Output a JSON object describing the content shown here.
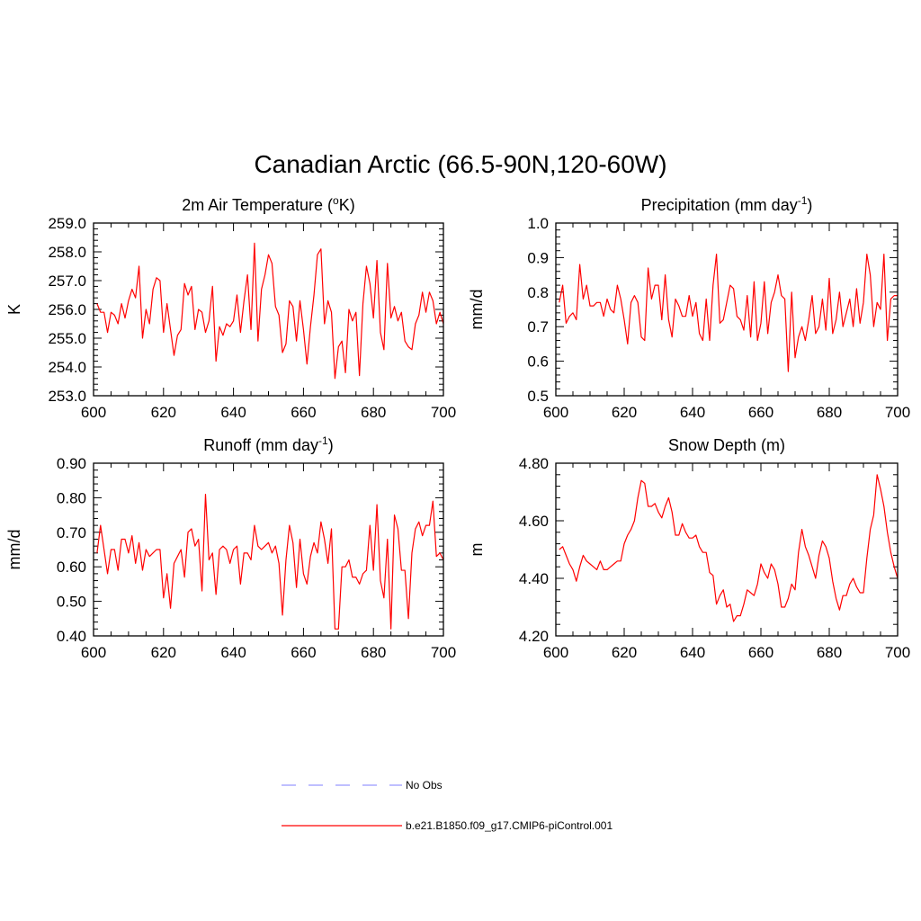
{
  "title": "Canadian Arctic (66.5-90N,120-60W)",
  "chart_data": [
    {
      "type": "line",
      "title": "2m Air Temperature (°K)",
      "xlabel": "",
      "ylabel": "K",
      "xlim": [
        600,
        700
      ],
      "ylim": [
        253.0,
        259.0
      ],
      "xticks": [
        600,
        620,
        640,
        660,
        680,
        700
      ],
      "yticks": [
        253.0,
        254.0,
        255.0,
        256.0,
        257.0,
        258.0,
        259.0
      ],
      "ytick_labels": [
        "253.0",
        "254.0",
        "255.0",
        "256.0",
        "257.0",
        "258.0",
        "259.0"
      ],
      "series": [
        {
          "name": "b.e21.B1850.f09_g17.CMIP6-piControl.001",
          "color": "#ff0000",
          "x_start": 601,
          "values": [
            256.2,
            255.9,
            255.9,
            255.2,
            255.9,
            255.8,
            255.5,
            256.2,
            255.7,
            256.3,
            256.7,
            256.4,
            257.5,
            255.0,
            256.0,
            255.5,
            256.7,
            257.1,
            257.0,
            255.2,
            256.2,
            255.3,
            254.4,
            255.1,
            255.3,
            256.9,
            256.5,
            256.8,
            255.3,
            256.0,
            255.9,
            255.2,
            255.6,
            256.8,
            254.2,
            255.4,
            255.1,
            255.5,
            255.4,
            255.6,
            256.5,
            255.2,
            256.3,
            257.2,
            255.3,
            258.3,
            254.9,
            256.7,
            257.2,
            257.9,
            257.6,
            256.1,
            255.8,
            254.5,
            254.8,
            256.3,
            256.1,
            254.9,
            256.3,
            255.3,
            254.1,
            255.4,
            256.5,
            257.9,
            258.1,
            255.5,
            256.3,
            255.9,
            253.6,
            254.7,
            254.9,
            253.8,
            256.0,
            255.6,
            255.9,
            253.7,
            256.2,
            257.5,
            256.9,
            255.7,
            257.7,
            255.2,
            254.6,
            257.6,
            255.7,
            256.1,
            255.6,
            255.9,
            254.9,
            254.7,
            254.6,
            255.5,
            255.8,
            256.6,
            255.9,
            256.6,
            256.3,
            255.5,
            255.9,
            255.5
          ]
        }
      ]
    },
    {
      "type": "line",
      "title": "Precipitation (mm day-1)",
      "xlabel": "",
      "ylabel": "mm/d",
      "xlim": [
        600,
        700
      ],
      "ylim": [
        0.5,
        1.0
      ],
      "xticks": [
        600,
        620,
        640,
        660,
        680,
        700
      ],
      "yticks": [
        0.5,
        0.6,
        0.7,
        0.8,
        0.9,
        1.0
      ],
      "ytick_labels": [
        "0.5",
        "0.6",
        "0.7",
        "0.8",
        "0.9",
        "1.0"
      ],
      "series": [
        {
          "name": "b.e21.B1850.f09_g17.CMIP6-piControl.001",
          "color": "#ff0000",
          "x_start": 601,
          "values": [
            0.77,
            0.82,
            0.71,
            0.73,
            0.74,
            0.72,
            0.88,
            0.78,
            0.82,
            0.76,
            0.76,
            0.77,
            0.77,
            0.73,
            0.78,
            0.75,
            0.74,
            0.82,
            0.78,
            0.72,
            0.65,
            0.77,
            0.79,
            0.77,
            0.67,
            0.66,
            0.87,
            0.78,
            0.82,
            0.82,
            0.72,
            0.85,
            0.72,
            0.67,
            0.78,
            0.76,
            0.73,
            0.73,
            0.79,
            0.73,
            0.77,
            0.68,
            0.66,
            0.78,
            0.66,
            0.82,
            0.91,
            0.71,
            0.72,
            0.77,
            0.82,
            0.81,
            0.73,
            0.72,
            0.69,
            0.79,
            0.67,
            0.83,
            0.66,
            0.71,
            0.83,
            0.68,
            0.77,
            0.8,
            0.85,
            0.79,
            0.78,
            0.57,
            0.8,
            0.61,
            0.67,
            0.7,
            0.66,
            0.72,
            0.79,
            0.68,
            0.7,
            0.78,
            0.69,
            0.84,
            0.68,
            0.72,
            0.8,
            0.7,
            0.74,
            0.78,
            0.7,
            0.81,
            0.71,
            0.77,
            0.91,
            0.85,
            0.7,
            0.77,
            0.75,
            0.91,
            0.66,
            0.78,
            0.79,
            0.79
          ]
        }
      ]
    },
    {
      "type": "line",
      "title": "Runoff (mm day-1)",
      "xlabel": "",
      "ylabel": "mm/d",
      "xlim": [
        600,
        700
      ],
      "ylim": [
        0.4,
        0.9
      ],
      "xticks": [
        600,
        620,
        640,
        660,
        680,
        700
      ],
      "yticks": [
        0.4,
        0.5,
        0.6,
        0.7,
        0.8,
        0.9
      ],
      "ytick_labels": [
        "0.40",
        "0.50",
        "0.60",
        "0.70",
        "0.80",
        "0.90"
      ],
      "series": [
        {
          "name": "b.e21.B1850.f09_g17.CMIP6-piControl.001",
          "color": "#ff0000",
          "x_start": 601,
          "values": [
            0.64,
            0.72,
            0.65,
            0.58,
            0.65,
            0.65,
            0.59,
            0.68,
            0.68,
            0.64,
            0.69,
            0.61,
            0.67,
            0.59,
            0.65,
            0.63,
            0.64,
            0.65,
            0.65,
            0.51,
            0.58,
            0.48,
            0.61,
            0.63,
            0.65,
            0.57,
            0.7,
            0.71,
            0.66,
            0.68,
            0.53,
            0.81,
            0.62,
            0.64,
            0.52,
            0.65,
            0.66,
            0.65,
            0.61,
            0.65,
            0.66,
            0.55,
            0.64,
            0.64,
            0.62,
            0.72,
            0.66,
            0.65,
            0.66,
            0.67,
            0.64,
            0.66,
            0.61,
            0.46,
            0.62,
            0.72,
            0.67,
            0.54,
            0.68,
            0.58,
            0.55,
            0.63,
            0.67,
            0.64,
            0.73,
            0.68,
            0.61,
            0.71,
            0.42,
            0.42,
            0.6,
            0.6,
            0.62,
            0.57,
            0.57,
            0.55,
            0.58,
            0.59,
            0.72,
            0.59,
            0.78,
            0.56,
            0.51,
            0.68,
            0.42,
            0.75,
            0.71,
            0.59,
            0.59,
            0.45,
            0.64,
            0.71,
            0.73,
            0.69,
            0.72,
            0.72,
            0.79,
            0.63,
            0.64,
            0.62
          ]
        }
      ]
    },
    {
      "type": "line",
      "title": "Snow Depth (m)",
      "xlabel": "",
      "ylabel": "m",
      "xlim": [
        600,
        700
      ],
      "ylim": [
        4.2,
        4.8
      ],
      "xticks": [
        600,
        620,
        640,
        660,
        680,
        700
      ],
      "yticks": [
        4.2,
        4.4,
        4.6,
        4.8
      ],
      "ytick_labels": [
        "4.20",
        "4.40",
        "4.60",
        "4.80"
      ],
      "series": [
        {
          "name": "b.e21.B1850.f09_g17.CMIP6-piControl.001",
          "color": "#ff0000",
          "x_start": 601,
          "values": [
            4.5,
            4.51,
            4.48,
            4.45,
            4.43,
            4.39,
            4.44,
            4.48,
            4.46,
            4.45,
            4.44,
            4.43,
            4.46,
            4.43,
            4.43,
            4.44,
            4.45,
            4.46,
            4.46,
            4.52,
            4.55,
            4.57,
            4.6,
            4.68,
            4.74,
            4.73,
            4.65,
            4.65,
            4.66,
            4.63,
            4.61,
            4.65,
            4.68,
            4.63,
            4.55,
            4.55,
            4.59,
            4.56,
            4.54,
            4.54,
            4.55,
            4.51,
            4.49,
            4.49,
            4.42,
            4.41,
            4.31,
            4.34,
            4.36,
            4.3,
            4.31,
            4.25,
            4.27,
            4.27,
            4.31,
            4.36,
            4.35,
            4.34,
            4.38,
            4.45,
            4.42,
            4.4,
            4.45,
            4.43,
            4.38,
            4.3,
            4.3,
            4.33,
            4.38,
            4.36,
            4.49,
            4.57,
            4.51,
            4.48,
            4.44,
            4.4,
            4.48,
            4.53,
            4.51,
            4.47,
            4.39,
            4.33,
            4.29,
            4.34,
            4.34,
            4.38,
            4.4,
            4.37,
            4.35,
            4.35,
            4.47,
            4.57,
            4.62,
            4.76,
            4.71,
            4.65,
            4.56,
            4.49,
            4.44,
            4.4
          ]
        }
      ]
    }
  ],
  "legend": [
    {
      "label": "No Obs",
      "color": "#9999ff",
      "style": "dashed"
    },
    {
      "label": "b.e21.B1850.f09_g17.CMIP6-piControl.001",
      "color": "#ff0000",
      "style": "solid"
    }
  ]
}
